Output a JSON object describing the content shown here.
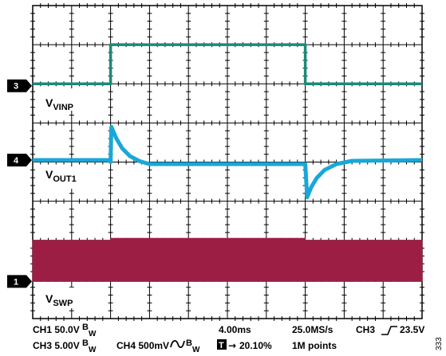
{
  "chart_data": {
    "type": "line",
    "title": "",
    "grid": true,
    "grid_divisions": {
      "x": 10,
      "y": 8
    },
    "x_units": "divisions",
    "y_units": "divisions",
    "xlim": [
      0,
      10
    ],
    "ylim": [
      -4,
      4
    ],
    "channel_markers": [
      {
        "number": "3",
        "y_div": 1.95
      },
      {
        "number": "4",
        "y_div": 0.05
      },
      {
        "number": "1",
        "y_div": -3.05
      }
    ],
    "trace_labels": [
      {
        "main": "V",
        "sub": "VINP"
      },
      {
        "main": "V",
        "sub": "OUT1"
      },
      {
        "main": "V",
        "sub": "SWP"
      }
    ],
    "series": [
      {
        "color": "#1a8a78",
        "points": [
          [
            0,
            2.0
          ],
          [
            2.0,
            2.0
          ],
          [
            2.0,
            3.0
          ],
          [
            7.0,
            3.0
          ],
          [
            7.0,
            2.0
          ],
          [
            10,
            2.0
          ]
        ]
      },
      {
        "color": "#1aa7d8",
        "points": [
          [
            0,
            0.05
          ],
          [
            1.95,
            0.05
          ],
          [
            2.0,
            0.0
          ],
          [
            2.02,
            0.9
          ],
          [
            2.15,
            0.6
          ],
          [
            2.3,
            0.35
          ],
          [
            2.5,
            0.15
          ],
          [
            2.75,
            0.02
          ],
          [
            3.0,
            -0.05
          ],
          [
            6.97,
            -0.05
          ],
          [
            7.0,
            -0.05
          ],
          [
            7.05,
            -0.9
          ],
          [
            7.15,
            -0.65
          ],
          [
            7.3,
            -0.4
          ],
          [
            7.5,
            -0.2
          ],
          [
            7.8,
            -0.05
          ],
          [
            8.2,
            0.03
          ],
          [
            10,
            0.05
          ]
        ]
      },
      {
        "color": "#9d1e45",
        "band_low": -3.05,
        "band_high_segments": [
          [
            0,
            2.0,
            -2.0
          ],
          [
            2.0,
            7.0,
            -1.95
          ],
          [
            7.0,
            10,
            -2.0
          ]
        ]
      }
    ],
    "footer": {
      "row1": [
        {
          "text": "CH1  50.0V "
        },
        {
          "text": "4.00ms"
        },
        {
          "text": "25.0MS/s"
        },
        {
          "text": "CH3"
        },
        {
          "text": "23.5V"
        }
      ],
      "row2": [
        {
          "text": "CH3  5.00V "
        },
        {
          "text": "CH4  500mV"
        },
        {
          "text": "20.10%"
        },
        {
          "text": "1M points"
        }
      ],
      "bw_main": "B",
      "bw_sub": "W",
      "trigger_marker": "T"
    },
    "side_id": "333"
  }
}
